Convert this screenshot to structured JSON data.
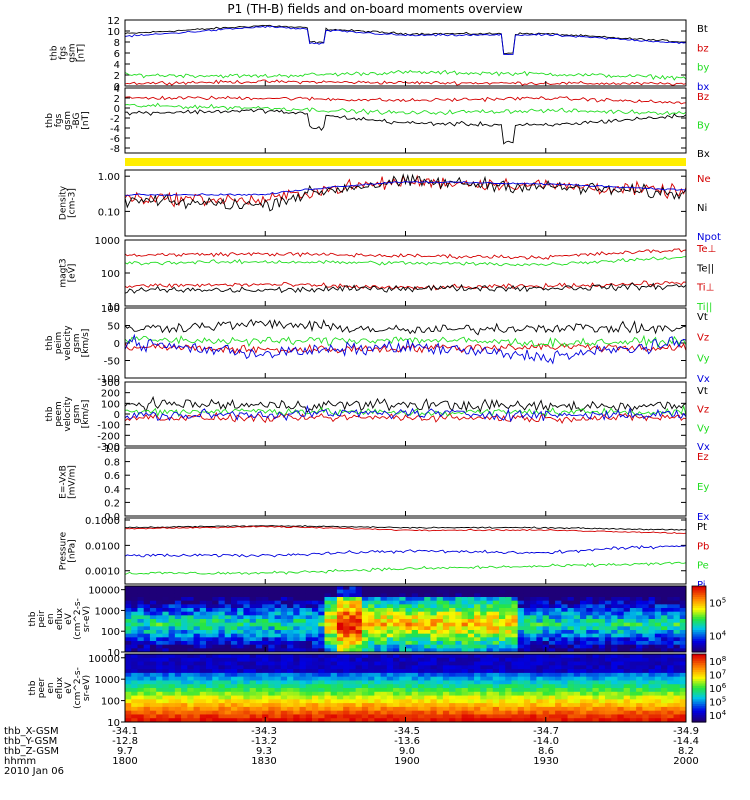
{
  "title": "P1 (TH-B) fields and on-board moments overview",
  "colors": {
    "black": "#000000",
    "red": "#d40000",
    "green": "#22dd22",
    "blue": "#0000dd",
    "yellow": "#ffee00"
  },
  "panels": [
    {
      "key": "fgs_gsm",
      "ylabel": [
        "thb",
        "fgs",
        "gsm",
        "[nT]"
      ],
      "yticks": [
        "12",
        "10",
        "8",
        "6",
        "4",
        "2",
        "0"
      ],
      "legend": [
        {
          "text": "Bt",
          "color": "black"
        },
        {
          "text": "bz",
          "color": "red"
        },
        {
          "text": "by",
          "color": "green"
        },
        {
          "text": "bx",
          "color": "blue"
        }
      ]
    },
    {
      "key": "fgs_gsm_2",
      "ylabel": [
        "thb",
        "fgs",
        "gsm",
        "-BG",
        "[nT]"
      ],
      "yticks": [
        "4",
        "2",
        "0",
        "-2",
        "-4",
        "-6",
        "-8"
      ],
      "legend": [
        {
          "text": "Bz",
          "color": "red"
        },
        {
          "text": "By",
          "color": "green"
        },
        {
          "text": "Bx",
          "color": "black"
        }
      ]
    },
    {
      "key": "status_bar",
      "ylabel": [],
      "yticks": [],
      "legend": []
    },
    {
      "key": "density",
      "ylabel": [
        "Density",
        "[cm-3]"
      ],
      "yticks": [
        "1.00",
        "0.10"
      ],
      "legend": [
        {
          "text": "Ne",
          "color": "red"
        },
        {
          "text": "Ni",
          "color": "black"
        },
        {
          "text": "Npot",
          "color": "blue"
        }
      ]
    },
    {
      "key": "temperature",
      "ylabel": [
        "magt3",
        "[eV]"
      ],
      "yticks": [
        "1000",
        "100",
        "10"
      ],
      "legend": [
        {
          "text": "Te⊥",
          "color": "red"
        },
        {
          "text": "Te||",
          "color": "black"
        },
        {
          "text": "Ti⊥",
          "color": "red"
        },
        {
          "text": "Ti||",
          "color": "green"
        }
      ]
    },
    {
      "key": "peim_velocity",
      "ylabel": [
        "thb",
        "peim",
        "velocity",
        "gsm",
        "[km/s]"
      ],
      "yticks": [
        "100",
        "50",
        "0",
        "-50",
        "-100"
      ],
      "legend": [
        {
          "text": "Vt",
          "color": "black"
        },
        {
          "text": "Vz",
          "color": "red"
        },
        {
          "text": "Vy",
          "color": "green"
        },
        {
          "text": "Vx",
          "color": "blue"
        }
      ]
    },
    {
      "key": "peem_velocity",
      "ylabel": [
        "thb",
        "peem",
        "velocity",
        "gsm",
        "[km/s]"
      ],
      "yticks": [
        "300",
        "200",
        "100",
        "0",
        "-100",
        "-200",
        "-300"
      ],
      "legend": [
        {
          "text": "Vt",
          "color": "black"
        },
        {
          "text": "Vz",
          "color": "red"
        },
        {
          "text": "Vy",
          "color": "green"
        },
        {
          "text": "Vx",
          "color": "blue"
        }
      ]
    },
    {
      "key": "efield",
      "ylabel": [
        "E=-VxB",
        "[mV/m]"
      ],
      "yticks": [
        "1.0",
        "0.8",
        "0.6",
        "0.4",
        "0.2",
        "0.0"
      ],
      "legend": [
        {
          "text": "Ez",
          "color": "red"
        },
        {
          "text": "Ey",
          "color": "green"
        },
        {
          "text": "Ex",
          "color": "blue"
        }
      ]
    },
    {
      "key": "pressure",
      "ylabel": [
        "Pressure",
        "[nPa]"
      ],
      "yticks": [
        "0.1000",
        "0.0100",
        "0.0010"
      ],
      "legend": [
        {
          "text": "Pt",
          "color": "black"
        },
        {
          "text": "Pb",
          "color": "red"
        },
        {
          "text": "Pe",
          "color": "green"
        },
        {
          "text": "Pi",
          "color": "blue"
        }
      ]
    },
    {
      "key": "peir_spectrogram",
      "ylabel": [
        "thb",
        "peir",
        "en",
        "eflux",
        "eV",
        "(cm^2-s-",
        "sr-eV)"
      ],
      "yticks": [
        "10000",
        "1000",
        "100",
        "10"
      ],
      "colorbar_ticks": [
        "10^5",
        "10^4"
      ]
    },
    {
      "key": "peer_spectrogram",
      "ylabel": [
        "thb",
        "peer",
        "en",
        "eflux",
        "eV",
        "(cm^2-s-",
        "sr-eV)"
      ],
      "yticks": [
        "10000",
        "1000",
        "100",
        "10"
      ],
      "colorbar_ticks": [
        "10^8",
        "10^7",
        "10^6",
        "10^5",
        "10^4"
      ]
    }
  ],
  "orbit": {
    "labels": [
      "thb_X-GSM",
      "thb_Y-GSM",
      "thb_Z-GSM",
      "hhmm",
      "2010 Jan 06"
    ],
    "columns": [
      {
        "x": "-34.1",
        "y": "-12.8",
        "z": "9.7",
        "hhmm": "1800"
      },
      {
        "x": "-34.3",
        "y": "-13.2",
        "z": "9.3",
        "hhmm": "1830"
      },
      {
        "x": "-34.5",
        "y": "-13.6",
        "z": "9.0",
        "hhmm": "1900"
      },
      {
        "x": "-34.7",
        "y": "-14.0",
        "z": "8.6",
        "hhmm": "1930"
      },
      {
        "x": "-34.9",
        "y": "-14.4",
        "z": "8.2",
        "hhmm": "2000"
      }
    ]
  },
  "chart_data": [
    {
      "type": "line",
      "panel": "fgs_gsm",
      "x_label": "hhmm",
      "x": [
        1800,
        1830,
        1900,
        1930,
        2000
      ],
      "series": [
        {
          "name": "Bt",
          "values": [
            9.5,
            11.0,
            9.5,
            9.5,
            8.0
          ]
        },
        {
          "name": "bz",
          "values": [
            0.5,
            0.8,
            0.6,
            0.5,
            0.4
          ]
        },
        {
          "name": "by",
          "values": [
            2.0,
            1.8,
            2.5,
            2.2,
            1.5
          ]
        },
        {
          "name": "bx",
          "values": [
            9.0,
            10.8,
            9.2,
            9.3,
            7.8
          ]
        }
      ]
    },
    {
      "type": "line",
      "panel": "fgs_gsm_2",
      "x": [
        1800,
        1830,
        1900,
        1930,
        2000
      ],
      "series": [
        {
          "name": "Bz",
          "values": [
            2.0,
            2.0,
            1.5,
            2.0,
            1.0
          ]
        },
        {
          "name": "By",
          "values": [
            0.5,
            0.0,
            -1.0,
            -0.5,
            -1.0
          ]
        },
        {
          "name": "Bx",
          "values": [
            -1.0,
            -0.5,
            -3.0,
            -3.5,
            -1.5
          ]
        }
      ]
    },
    {
      "type": "line",
      "panel": "density",
      "yscale": "log",
      "x": [
        1800,
        1830,
        1900,
        1930,
        2000
      ],
      "series": [
        {
          "name": "Ne",
          "values": [
            0.25,
            0.2,
            0.7,
            0.55,
            0.35
          ]
        },
        {
          "name": "Ni",
          "values": [
            0.2,
            0.15,
            0.7,
            0.5,
            0.3
          ]
        },
        {
          "name": "Npot",
          "values": [
            0.3,
            0.3,
            0.7,
            0.6,
            0.4
          ]
        }
      ]
    },
    {
      "type": "line",
      "panel": "temperature",
      "yscale": "log",
      "x": [
        1800,
        1830,
        1900,
        1930,
        2000
      ],
      "series": [
        {
          "name": "Te⊥",
          "values": [
            40,
            45,
            35,
            40,
            50
          ]
        },
        {
          "name": "Te||",
          "values": [
            30,
            30,
            35,
            35,
            40
          ]
        },
        {
          "name": "Ti⊥",
          "values": [
            350,
            380,
            330,
            300,
            500
          ]
        },
        {
          "name": "Ti||",
          "values": [
            200,
            220,
            200,
            180,
            300
          ]
        }
      ]
    },
    {
      "type": "line",
      "panel": "peim_velocity",
      "x": [
        1800,
        1830,
        1900,
        1930,
        2000
      ],
      "series": [
        {
          "name": "Vt",
          "values": [
            40,
            55,
            35,
            45,
            40
          ]
        },
        {
          "name": "Vz",
          "values": [
            -10,
            -20,
            -15,
            -10,
            -15
          ]
        },
        {
          "name": "Vy",
          "values": [
            10,
            5,
            10,
            0,
            5
          ]
        },
        {
          "name": "Vx",
          "values": [
            0,
            -30,
            -10,
            -40,
            0
          ]
        }
      ]
    },
    {
      "type": "line",
      "panel": "peem_velocity",
      "x": [
        1800,
        1830,
        1900,
        1930,
        2000
      ],
      "series": [
        {
          "name": "Vt",
          "values": [
            100,
            80,
            90,
            70,
            80
          ]
        },
        {
          "name": "Vz",
          "values": [
            -30,
            -40,
            -30,
            -40,
            -30
          ]
        },
        {
          "name": "Vy",
          "values": [
            20,
            30,
            10,
            20,
            20
          ]
        },
        {
          "name": "Vx",
          "values": [
            -20,
            0,
            10,
            -10,
            0
          ]
        }
      ]
    },
    {
      "type": "line",
      "panel": "pressure",
      "yscale": "log",
      "x": [
        1800,
        1830,
        1900,
        1930,
        2000
      ],
      "series": [
        {
          "name": "Pt",
          "values": [
            0.05,
            0.06,
            0.05,
            0.05,
            0.04
          ]
        },
        {
          "name": "Pb",
          "values": [
            0.045,
            0.055,
            0.04,
            0.04,
            0.03
          ]
        },
        {
          "name": "Pe",
          "values": [
            0.0008,
            0.0008,
            0.0012,
            0.0015,
            0.002
          ]
        },
        {
          "name": "Pi",
          "values": [
            0.004,
            0.004,
            0.006,
            0.005,
            0.01
          ]
        }
      ]
    },
    {
      "type": "heatmap",
      "panel": "peir_spectrogram",
      "yscale": "log",
      "ylim": [
        10,
        10000
      ],
      "zlim": [
        10000,
        100000
      ]
    },
    {
      "type": "heatmap",
      "panel": "peer_spectrogram",
      "yscale": "log",
      "ylim": [
        10,
        10000
      ],
      "zlim": [
        10000,
        100000000
      ]
    }
  ]
}
